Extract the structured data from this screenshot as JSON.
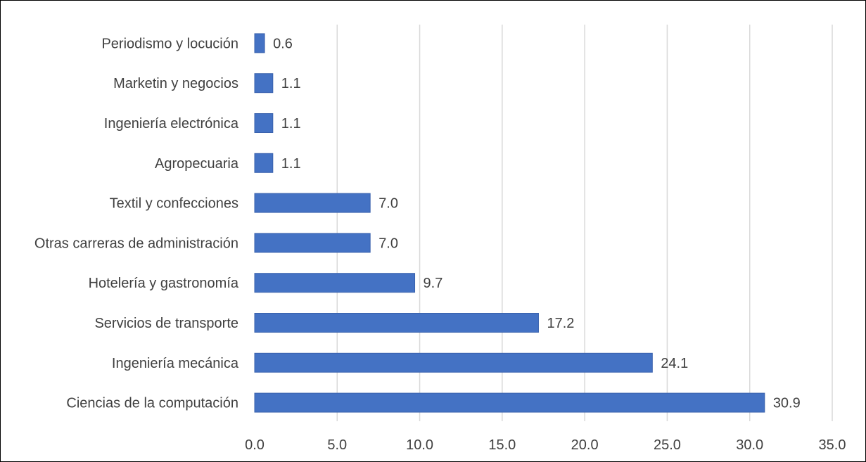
{
  "chart_data": {
    "type": "bar",
    "orientation": "horizontal",
    "title": "",
    "xlabel": "",
    "ylabel": "",
    "categories": [
      "Periodismo y locución",
      "Marketin y negocios",
      "Ingeniería electrónica",
      "Agropecuaria",
      "Textil y confecciones",
      "Otras carreras de administración",
      "Hotelería y gastronomía",
      "Servicios de transporte",
      "Ingeniería mecánica",
      "Ciencias de la computación"
    ],
    "values": [
      0.6,
      1.1,
      1.1,
      1.1,
      7.0,
      7.0,
      9.7,
      17.2,
      24.1,
      30.9
    ],
    "value_labels": [
      "0.6",
      "1.1",
      "1.1",
      "1.1",
      "7.0",
      "7.0",
      "9.7",
      "17.2",
      "24.1",
      "30.9"
    ],
    "xlim": [
      0,
      35
    ],
    "xticks": [
      0,
      5,
      10,
      15,
      20,
      25,
      30,
      35
    ],
    "xtick_labels": [
      "0.0",
      "5.0",
      "10.0",
      "15.0",
      "20.0",
      "25.0",
      "30.0",
      "35.0"
    ],
    "grid": true,
    "legend": "none",
    "colors": {
      "bar": "#4472c4",
      "bar_edge": "#3a62ad",
      "grid": "#d9d9d9",
      "text": "#404040",
      "border": "#000000"
    }
  }
}
